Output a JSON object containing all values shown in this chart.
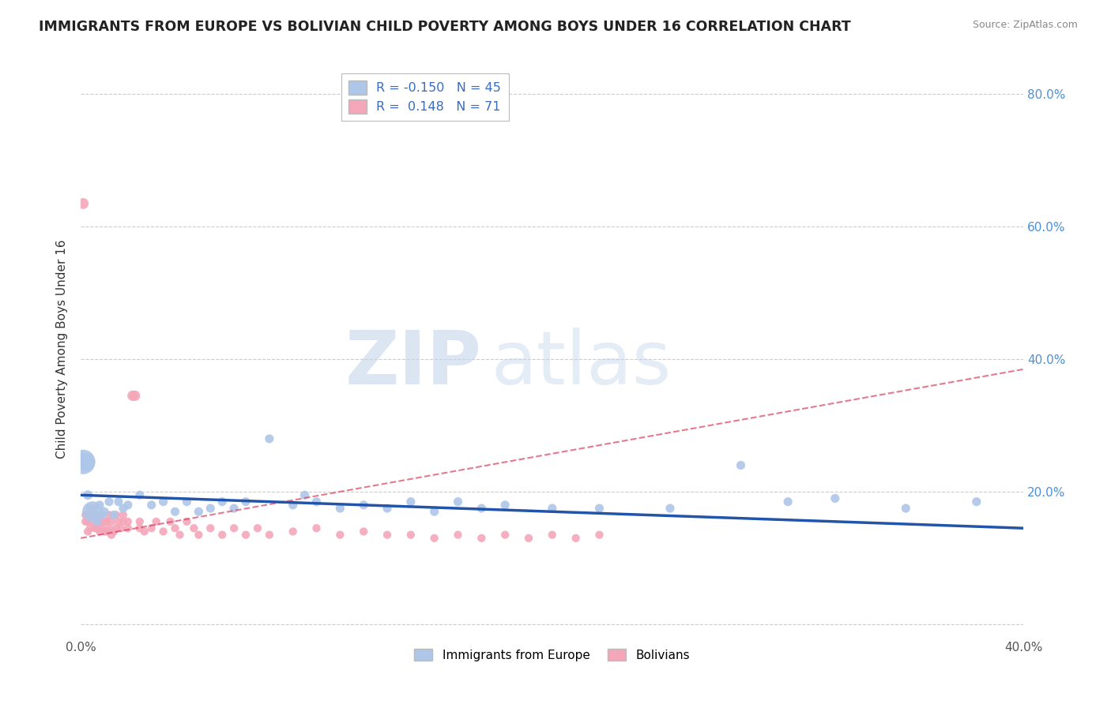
{
  "title": "IMMIGRANTS FROM EUROPE VS BOLIVIAN CHILD POVERTY AMONG BOYS UNDER 16 CORRELATION CHART",
  "source": "Source: ZipAtlas.com",
  "ylabel": "Child Poverty Among Boys Under 16",
  "xlim": [
    0.0,
    0.4
  ],
  "ylim": [
    -0.02,
    0.85
  ],
  "yticks": [
    0.0,
    0.2,
    0.4,
    0.6,
    0.8
  ],
  "ytick_labels": [
    "",
    "20.0%",
    "40.0%",
    "60.0%",
    "80.0%"
  ],
  "grid_color": "#cccccc",
  "background_color": "#ffffff",
  "watermark_zip": "ZIP",
  "watermark_atlas": "atlas",
  "legend_entries": [
    {
      "label": "R = -0.150   N = 45",
      "color": "#aec6e8"
    },
    {
      "label": "R =  0.148   N = 71",
      "color": "#f4a7b9"
    }
  ],
  "series_europe": {
    "color": "#aec6e8",
    "trend_color": "#2255aa",
    "points": [
      [
        0.001,
        0.245
      ],
      [
        0.002,
        0.245
      ],
      [
        0.003,
        0.195
      ],
      [
        0.004,
        0.175
      ],
      [
        0.005,
        0.17
      ],
      [
        0.006,
        0.165
      ],
      [
        0.007,
        0.155
      ],
      [
        0.008,
        0.18
      ],
      [
        0.009,
        0.165
      ],
      [
        0.01,
        0.17
      ],
      [
        0.012,
        0.185
      ],
      [
        0.014,
        0.165
      ],
      [
        0.016,
        0.185
      ],
      [
        0.018,
        0.175
      ],
      [
        0.02,
        0.18
      ],
      [
        0.025,
        0.195
      ],
      [
        0.03,
        0.18
      ],
      [
        0.035,
        0.185
      ],
      [
        0.04,
        0.17
      ],
      [
        0.045,
        0.185
      ],
      [
        0.05,
        0.17
      ],
      [
        0.055,
        0.175
      ],
      [
        0.06,
        0.185
      ],
      [
        0.065,
        0.175
      ],
      [
        0.07,
        0.185
      ],
      [
        0.08,
        0.28
      ],
      [
        0.09,
        0.18
      ],
      [
        0.095,
        0.195
      ],
      [
        0.1,
        0.185
      ],
      [
        0.11,
        0.175
      ],
      [
        0.12,
        0.18
      ],
      [
        0.13,
        0.175
      ],
      [
        0.14,
        0.185
      ],
      [
        0.15,
        0.17
      ],
      [
        0.16,
        0.185
      ],
      [
        0.17,
        0.175
      ],
      [
        0.18,
        0.18
      ],
      [
        0.2,
        0.175
      ],
      [
        0.22,
        0.175
      ],
      [
        0.25,
        0.175
      ],
      [
        0.28,
        0.24
      ],
      [
        0.3,
        0.185
      ],
      [
        0.32,
        0.19
      ],
      [
        0.35,
        0.175
      ],
      [
        0.38,
        0.185
      ]
    ],
    "sizes": [
      500,
      280,
      75,
      65,
      350,
      65,
      65,
      65,
      65,
      65,
      65,
      65,
      65,
      65,
      65,
      65,
      65,
      65,
      65,
      65,
      65,
      65,
      65,
      65,
      65,
      65,
      65,
      65,
      65,
      65,
      65,
      65,
      65,
      65,
      65,
      65,
      65,
      65,
      65,
      65,
      65,
      65,
      65,
      65,
      65
    ],
    "trend_x": [
      0.0,
      0.4
    ],
    "trend_y": [
      0.195,
      0.145
    ]
  },
  "series_bolivian": {
    "color": "#f4a7b9",
    "trend_color": "#d94060",
    "points": [
      [
        0.001,
        0.635
      ],
      [
        0.002,
        0.155
      ],
      [
        0.002,
        0.165
      ],
      [
        0.003,
        0.14
      ],
      [
        0.003,
        0.155
      ],
      [
        0.004,
        0.145
      ],
      [
        0.004,
        0.17
      ],
      [
        0.005,
        0.155
      ],
      [
        0.005,
        0.165
      ],
      [
        0.005,
        0.175
      ],
      [
        0.006,
        0.145
      ],
      [
        0.006,
        0.16
      ],
      [
        0.007,
        0.145
      ],
      [
        0.007,
        0.155
      ],
      [
        0.007,
        0.165
      ],
      [
        0.008,
        0.14
      ],
      [
        0.008,
        0.155
      ],
      [
        0.008,
        0.165
      ],
      [
        0.009,
        0.145
      ],
      [
        0.009,
        0.155
      ],
      [
        0.01,
        0.14
      ],
      [
        0.01,
        0.155
      ],
      [
        0.011,
        0.14
      ],
      [
        0.011,
        0.155
      ],
      [
        0.012,
        0.145
      ],
      [
        0.012,
        0.165
      ],
      [
        0.013,
        0.135
      ],
      [
        0.013,
        0.155
      ],
      [
        0.014,
        0.14
      ],
      [
        0.015,
        0.145
      ],
      [
        0.015,
        0.165
      ],
      [
        0.016,
        0.155
      ],
      [
        0.017,
        0.145
      ],
      [
        0.018,
        0.155
      ],
      [
        0.018,
        0.165
      ],
      [
        0.02,
        0.145
      ],
      [
        0.02,
        0.155
      ],
      [
        0.022,
        0.345
      ],
      [
        0.023,
        0.345
      ],
      [
        0.025,
        0.145
      ],
      [
        0.025,
        0.155
      ],
      [
        0.027,
        0.14
      ],
      [
        0.03,
        0.145
      ],
      [
        0.032,
        0.155
      ],
      [
        0.035,
        0.14
      ],
      [
        0.038,
        0.155
      ],
      [
        0.04,
        0.145
      ],
      [
        0.042,
        0.135
      ],
      [
        0.045,
        0.155
      ],
      [
        0.048,
        0.145
      ],
      [
        0.05,
        0.135
      ],
      [
        0.055,
        0.145
      ],
      [
        0.06,
        0.135
      ],
      [
        0.065,
        0.145
      ],
      [
        0.07,
        0.135
      ],
      [
        0.075,
        0.145
      ],
      [
        0.08,
        0.135
      ],
      [
        0.09,
        0.14
      ],
      [
        0.1,
        0.145
      ],
      [
        0.11,
        0.135
      ],
      [
        0.12,
        0.14
      ],
      [
        0.13,
        0.135
      ],
      [
        0.14,
        0.135
      ],
      [
        0.15,
        0.13
      ],
      [
        0.16,
        0.135
      ],
      [
        0.17,
        0.13
      ],
      [
        0.18,
        0.135
      ],
      [
        0.19,
        0.13
      ],
      [
        0.2,
        0.135
      ],
      [
        0.21,
        0.13
      ],
      [
        0.22,
        0.135
      ]
    ],
    "sizes": [
      100,
      55,
      55,
      55,
      55,
      55,
      55,
      55,
      55,
      55,
      55,
      55,
      55,
      55,
      55,
      55,
      55,
      55,
      55,
      55,
      55,
      55,
      55,
      55,
      55,
      55,
      55,
      55,
      55,
      55,
      55,
      55,
      55,
      55,
      55,
      55,
      55,
      90,
      90,
      55,
      55,
      55,
      55,
      55,
      55,
      55,
      55,
      55,
      55,
      55,
      55,
      55,
      55,
      55,
      55,
      55,
      55,
      55,
      55,
      55,
      55,
      55,
      55,
      55,
      55,
      55,
      55,
      55,
      55,
      55,
      55
    ],
    "trend_x": [
      0.0,
      0.4
    ],
    "trend_y": [
      0.13,
      0.385
    ]
  }
}
